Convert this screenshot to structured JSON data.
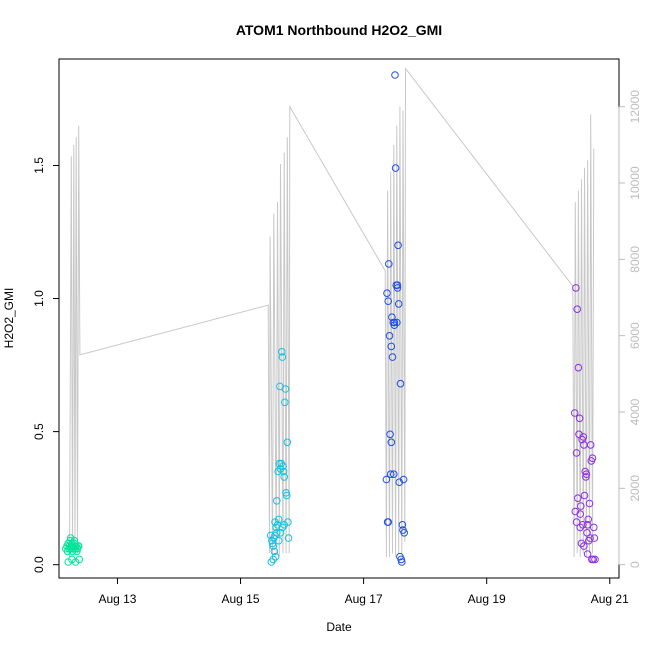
{
  "chart_data": {
    "type": "scatter",
    "title": "ATOM1 Northbound H2O2_GMI",
    "xlabel": "Date",
    "ylabel": "H2O2_GMI",
    "x_ticks": [
      "Aug 13",
      "Aug 15",
      "Aug 17",
      "Aug 19",
      "Aug 21"
    ],
    "x_tick_values": [
      13,
      15,
      17,
      19,
      21
    ],
    "xlim": [
      12.05,
      21.15
    ],
    "y_ticks": [
      "0.0",
      "0.5",
      "1.0",
      "1.5"
    ],
    "y_tick_values": [
      0.0,
      0.5,
      1.0,
      1.5
    ],
    "ylim": [
      -0.05,
      1.9
    ],
    "y2_ticks": [
      "0",
      "2000",
      "4000",
      "6000",
      "8000",
      "10000",
      "12000"
    ],
    "y2_tick_values": [
      0,
      2000,
      4000,
      6000,
      8000,
      10000,
      12000
    ],
    "y2lim": [
      -350,
      13250
    ],
    "secondary_line_color": "#c8c8c8",
    "secondary_line": [
      [
        12.22,
        200
      ],
      [
        12.25,
        10700
      ],
      [
        12.27,
        300
      ],
      [
        12.29,
        11000
      ],
      [
        12.31,
        400
      ],
      [
        12.33,
        11200
      ],
      [
        12.35,
        300
      ],
      [
        12.37,
        11500
      ],
      [
        12.39,
        5500
      ],
      [
        15.45,
        6800
      ],
      [
        15.47,
        300
      ],
      [
        15.48,
        8600
      ],
      [
        15.52,
        200
      ],
      [
        15.54,
        9200
      ],
      [
        15.58,
        300
      ],
      [
        15.6,
        9500
      ],
      [
        15.63,
        200
      ],
      [
        15.65,
        10500
      ],
      [
        15.69,
        300
      ],
      [
        15.71,
        10800
      ],
      [
        15.74,
        300
      ],
      [
        15.76,
        11200
      ],
      [
        15.79,
        300
      ],
      [
        15.8,
        12000
      ],
      [
        17.35,
        7700
      ],
      [
        17.37,
        200
      ],
      [
        17.39,
        9800
      ],
      [
        17.42,
        200
      ],
      [
        17.44,
        10300
      ],
      [
        17.47,
        300
      ],
      [
        17.49,
        11000
      ],
      [
        17.52,
        200
      ],
      [
        17.54,
        11500
      ],
      [
        17.57,
        300
      ],
      [
        17.59,
        12000
      ],
      [
        17.62,
        300
      ],
      [
        17.64,
        11900
      ],
      [
        17.67,
        600
      ],
      [
        17.68,
        13000
      ],
      [
        20.4,
        7300
      ],
      [
        20.42,
        200
      ],
      [
        20.44,
        9500
      ],
      [
        20.47,
        300
      ],
      [
        20.49,
        9800
      ],
      [
        20.52,
        200
      ],
      [
        20.54,
        10100
      ],
      [
        20.57,
        300
      ],
      [
        20.59,
        10400
      ],
      [
        20.62,
        200
      ],
      [
        20.64,
        10600
      ],
      [
        20.67,
        300
      ],
      [
        20.69,
        11800
      ],
      [
        20.72,
        300
      ],
      [
        20.74,
        10900
      ]
    ],
    "series": [
      {
        "color": "#00e59a",
        "x": [
          12.16,
          12.18,
          12.19,
          12.2,
          12.21,
          12.22,
          12.23,
          12.24,
          12.25,
          12.26,
          12.27,
          12.28,
          12.29,
          12.3,
          12.31,
          12.32,
          12.33,
          12.34,
          12.35,
          12.36,
          12.37,
          12.2,
          12.26,
          12.32,
          12.38,
          12.24,
          12.3
        ],
        "y": [
          0.06,
          0.07,
          0.05,
          0.08,
          0.06,
          0.07,
          0.09,
          0.06,
          0.07,
          0.08,
          0.05,
          0.07,
          0.06,
          0.08,
          0.07,
          0.06,
          0.07,
          0.05,
          0.06,
          0.07,
          0.07,
          0.01,
          0.02,
          0.01,
          0.02,
          0.1,
          0.09
        ]
      },
      {
        "color": "#16c0e6",
        "x": [
          15.49,
          15.51,
          15.52,
          15.53,
          15.54,
          15.55,
          15.56,
          15.57,
          15.58,
          15.59,
          15.6,
          15.61,
          15.62,
          15.63,
          15.64,
          15.65,
          15.66,
          15.67,
          15.68,
          15.69,
          15.7,
          15.71,
          15.72,
          15.73,
          15.74,
          15.75,
          15.76,
          15.77,
          15.78,
          15.5,
          15.53,
          15.56,
          15.59,
          15.62,
          15.65,
          15.68,
          15.71
        ],
        "y": [
          0.11,
          0.09,
          0.08,
          0.07,
          0.1,
          0.05,
          0.16,
          0.03,
          0.14,
          0.24,
          0.15,
          0.35,
          0.17,
          0.38,
          0.67,
          0.36,
          0.38,
          0.8,
          0.78,
          0.37,
          0.35,
          0.33,
          0.61,
          0.66,
          0.27,
          0.26,
          0.46,
          0.16,
          0.1,
          0.01,
          0.02,
          0.11,
          0.12,
          0.09,
          0.12,
          0.14,
          0.15
        ]
      },
      {
        "color": "#1f4fe6",
        "x": [
          17.37,
          17.38,
          17.39,
          17.4,
          17.41,
          17.42,
          17.43,
          17.44,
          17.45,
          17.46,
          17.47,
          17.48,
          17.49,
          17.5,
          17.51,
          17.52,
          17.53,
          17.54,
          17.55,
          17.56,
          17.57,
          17.58,
          17.59,
          17.6,
          17.61,
          17.62,
          17.63,
          17.64,
          17.65,
          17.66,
          17.4,
          17.45,
          17.5,
          17.55
        ],
        "y": [
          0.32,
          1.02,
          0.16,
          0.99,
          1.13,
          0.86,
          0.49,
          0.34,
          0.46,
          0.93,
          0.78,
          0.91,
          0.34,
          0.91,
          1.84,
          1.49,
          1.05,
          0.91,
          1.04,
          1.2,
          0.98,
          0.31,
          0.03,
          0.68,
          0.02,
          0.01,
          0.15,
          0.13,
          0.32,
          0.12,
          0.16,
          0.82,
          0.9,
          1.05
        ]
      },
      {
        "color": "#8e2ee6",
        "x": [
          20.43,
          20.44,
          20.45,
          20.46,
          20.47,
          20.48,
          20.49,
          20.5,
          20.51,
          20.52,
          20.53,
          20.54,
          20.55,
          20.56,
          20.57,
          20.58,
          20.59,
          20.6,
          20.61,
          20.62,
          20.63,
          20.64,
          20.65,
          20.66,
          20.67,
          20.68,
          20.69,
          20.7,
          20.71,
          20.72,
          20.73,
          20.74,
          20.75,
          20.76,
          20.46,
          20.52,
          20.58,
          20.64
        ],
        "y": [
          0.57,
          0.2,
          1.04,
          0.42,
          0.96,
          0.25,
          0.74,
          0.49,
          0.55,
          0.14,
          0.22,
          0.08,
          0.47,
          0.15,
          0.48,
          0.45,
          0.26,
          0.35,
          0.33,
          0.34,
          0.12,
          0.04,
          0.17,
          0.09,
          0.23,
          0.1,
          0.45,
          0.39,
          0.02,
          0.4,
          0.02,
          0.14,
          0.1,
          0.02,
          0.16,
          0.19,
          0.07,
          0.15
        ]
      }
    ]
  }
}
